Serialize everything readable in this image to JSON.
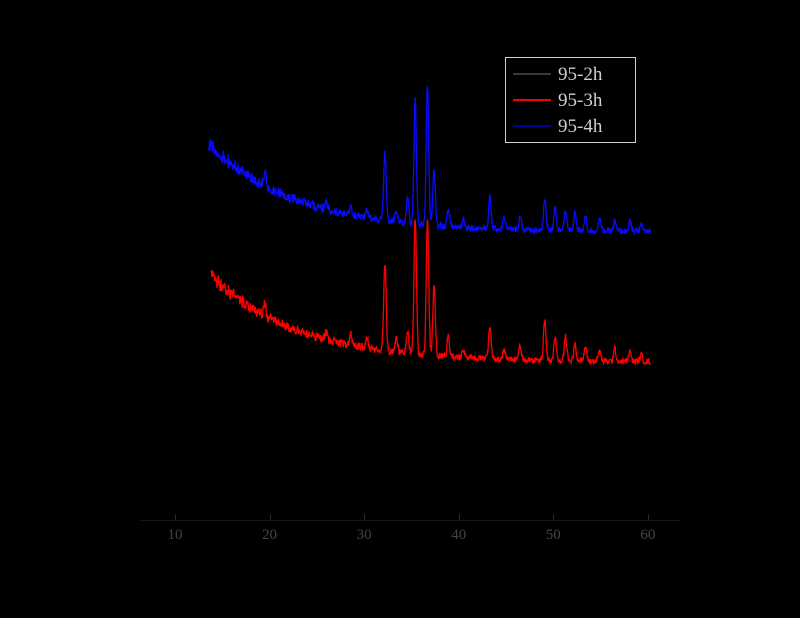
{
  "figure": {
    "background_color": "#000000",
    "legend": {
      "position": "top-right",
      "border_color": "#cfcfcf",
      "text_color": "#cfcfcf",
      "entries": [
        {
          "label": "95-2h",
          "color": "#3a3a3a"
        },
        {
          "label": "95-3h",
          "color": "#ff0000"
        },
        {
          "label": "95-4h",
          "color": "#000099"
        }
      ]
    }
  },
  "chart_data": {
    "type": "line",
    "title": "",
    "xlabel": "",
    "ylabel": "",
    "grid": false,
    "legend_position": "top-right",
    "x_ticks": [
      "10",
      "20",
      "30",
      "40",
      "50",
      "60"
    ],
    "x_tick_values": [
      10,
      20,
      30,
      40,
      50,
      60
    ],
    "xlim": [
      6.3,
      63.4
    ],
    "ylim": [
      0,
      1.1
    ],
    "x_range_data": [
      13.6,
      60.3
    ],
    "background_decay": {
      "amplitude": 0.214,
      "tau": 9,
      "onset": 13.5
    },
    "peak_sigma_deg": 0.13,
    "peaks": [
      {
        "two_theta": 19.5,
        "intensity": 0.03
      },
      {
        "two_theta": 26.0,
        "intensity": 0.015
      },
      {
        "two_theta": 28.6,
        "intensity": 0.022
      },
      {
        "two_theta": 30.3,
        "intensity": 0.018
      },
      {
        "two_theta": 32.2,
        "intensity": 0.17
      },
      {
        "two_theta": 33.4,
        "intensity": 0.03
      },
      {
        "two_theta": 34.6,
        "intensity": 0.055
      },
      {
        "two_theta": 35.4,
        "intensity": 0.3
      },
      {
        "two_theta": 36.7,
        "intensity": 0.334
      },
      {
        "two_theta": 37.4,
        "intensity": 0.13
      },
      {
        "two_theta": 38.9,
        "intensity": 0.045
      },
      {
        "two_theta": 40.5,
        "intensity": 0.02
      },
      {
        "two_theta": 43.3,
        "intensity": 0.065
      },
      {
        "two_theta": 44.8,
        "intensity": 0.025
      },
      {
        "two_theta": 46.5,
        "intensity": 0.03
      },
      {
        "two_theta": 49.1,
        "intensity": 0.075
      },
      {
        "two_theta": 50.2,
        "intensity": 0.05
      },
      {
        "two_theta": 51.3,
        "intensity": 0.06
      },
      {
        "two_theta": 52.3,
        "intensity": 0.045
      },
      {
        "two_theta": 53.4,
        "intensity": 0.035
      },
      {
        "two_theta": 54.9,
        "intensity": 0.025
      },
      {
        "two_theta": 56.5,
        "intensity": 0.03
      },
      {
        "two_theta": 58.1,
        "intensity": 0.02
      },
      {
        "two_theta": 59.3,
        "intensity": 0.015
      }
    ],
    "series": [
      {
        "name": "95-2h",
        "color": "#000000",
        "offset": 0.07,
        "t_start": 13.8,
        "peak_gain": 1.0
      },
      {
        "name": "95-3h",
        "color": "#ff0000",
        "offset": 0.376,
        "t_start": 13.8,
        "peak_gain": 1.1
      },
      {
        "name": "95-4h",
        "color": "#0a0aff",
        "offset": 0.686,
        "t_start": 13.6,
        "peak_gain": 1.0
      }
    ]
  }
}
